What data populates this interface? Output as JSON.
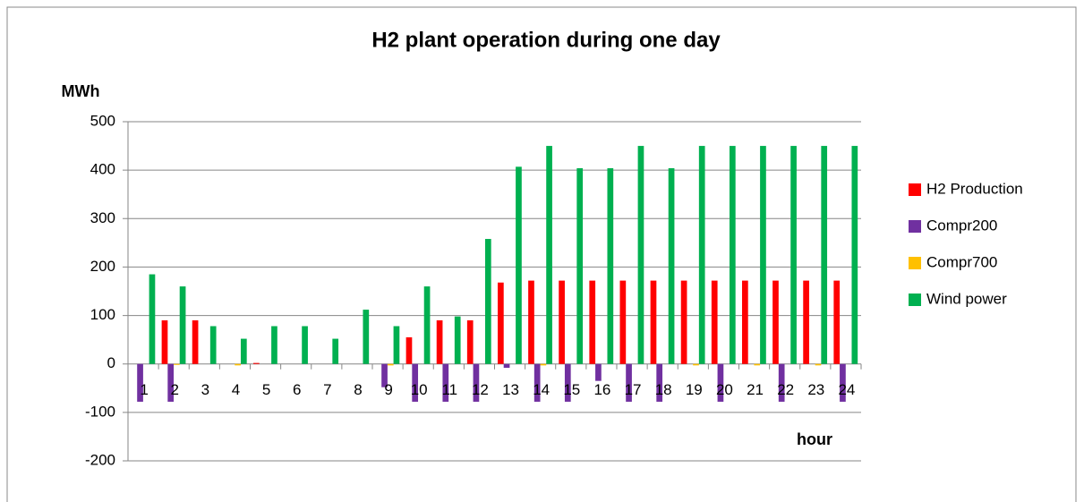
{
  "chart_data": {
    "type": "bar",
    "title": "H2 plant operation during one day",
    "y_label": "MWh",
    "x_label": "hour",
    "categories": [
      "1",
      "2",
      "3",
      "4",
      "5",
      "6",
      "7",
      "8",
      "9",
      "10",
      "11",
      "12",
      "13",
      "14",
      "15",
      "16",
      "17",
      "18",
      "19",
      "20",
      "21",
      "22",
      "23",
      "24"
    ],
    "series": [
      {
        "name": "H2 Production",
        "color": "#ff0000",
        "values": [
          0,
          90,
          90,
          0,
          2,
          0,
          0,
          0,
          0,
          55,
          90,
          90,
          168,
          172,
          172,
          172,
          172,
          172,
          172,
          172,
          172,
          172,
          172,
          172
        ]
      },
      {
        "name": "Compr200",
        "color": "#7030a0",
        "values": [
          -78,
          -78,
          0,
          0,
          0,
          0,
          0,
          0,
          -48,
          -78,
          -78,
          -78,
          -8,
          -78,
          -78,
          -35,
          -78,
          -78,
          0,
          -78,
          0,
          -78,
          0,
          -78
        ]
      },
      {
        "name": "Compr700",
        "color": "#ffc000",
        "values": [
          0,
          -2,
          0,
          -3,
          0,
          0,
          0,
          0,
          -3,
          0,
          0,
          0,
          0,
          -3,
          0,
          0,
          0,
          0,
          -3,
          0,
          -3,
          0,
          -3,
          0
        ]
      },
      {
        "name": "Wind power",
        "color": "#00b050",
        "values": [
          185,
          160,
          78,
          52,
          78,
          78,
          52,
          112,
          78,
          160,
          98,
          258,
          407,
          450,
          404,
          404,
          450,
          404,
          450,
          450,
          450,
          450,
          450,
          450
        ]
      }
    ],
    "ylim": [
      -200,
      500
    ],
    "yticks": [
      -200,
      -100,
      0,
      100,
      200,
      300,
      400,
      500
    ],
    "grid": true
  }
}
